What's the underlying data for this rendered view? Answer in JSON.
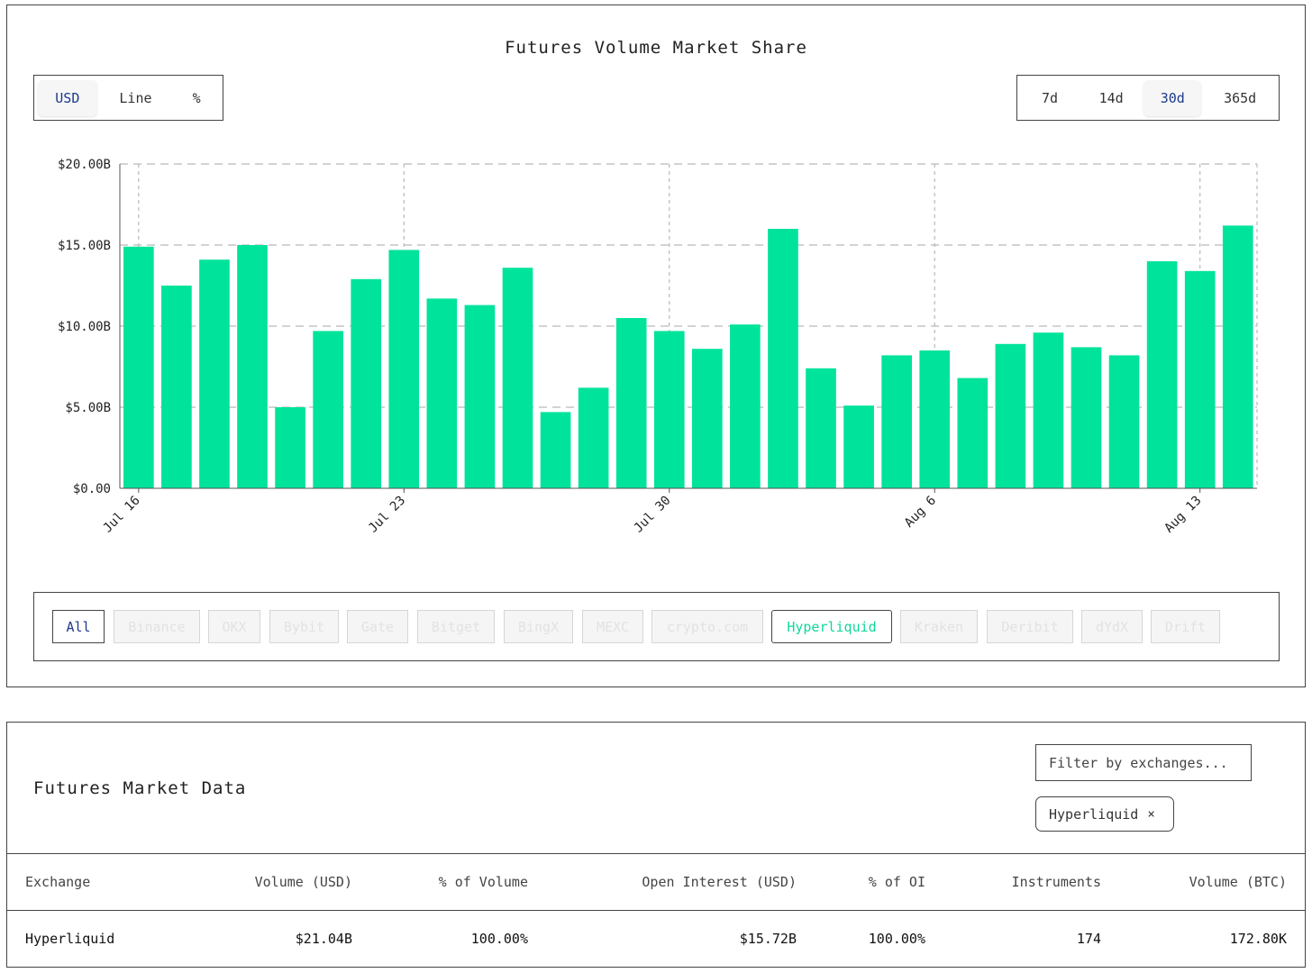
{
  "chart_data": {
    "type": "bar",
    "title": "Futures Volume Market Share",
    "y_ticks": [
      "$0.00",
      "$5.00B",
      "$10.00B",
      "$15.00B",
      "$20.00B"
    ],
    "x_tick_labels": [
      "Jul 16",
      "Jul 23",
      "Jul 30",
      "Aug 6",
      "Aug 13"
    ],
    "x_tick_indices": [
      0,
      7,
      14,
      21,
      28
    ],
    "ylim": [
      0,
      20
    ],
    "y_unit": "B USD",
    "series": [
      {
        "name": "Hyperliquid",
        "color": "#00e39b",
        "values": [
          14.9,
          12.5,
          14.1,
          15.0,
          5.0,
          9.7,
          12.9,
          14.7,
          11.7,
          11.3,
          13.6,
          4.7,
          6.2,
          10.5,
          9.7,
          8.6,
          10.1,
          16.0,
          7.4,
          5.1,
          8.2,
          8.5,
          6.8,
          8.9,
          9.6,
          8.7,
          8.2,
          14.0,
          13.4,
          16.2
        ]
      }
    ],
    "categories": [
      "Jul 16",
      "Jul 17",
      "Jul 18",
      "Jul 19",
      "Jul 20",
      "Jul 21",
      "Jul 22",
      "Jul 23",
      "Jul 24",
      "Jul 25",
      "Jul 26",
      "Jul 27",
      "Jul 28",
      "Jul 29",
      "Jul 30",
      "Jul 31",
      "Aug 1",
      "Aug 2",
      "Aug 3",
      "Aug 4",
      "Aug 5",
      "Aug 6",
      "Aug 7",
      "Aug 8",
      "Aug 9",
      "Aug 10",
      "Aug 11",
      "Aug 12",
      "Aug 13",
      "Aug 14"
    ],
    "grid": true,
    "legend": "none"
  },
  "view_toggle": {
    "options": [
      "USD",
      "Line",
      "%"
    ],
    "active": "USD"
  },
  "range_toggle": {
    "options": [
      "7d",
      "14d",
      "30d",
      "365d"
    ],
    "active": "30d"
  },
  "exchanges": {
    "all_label": "All",
    "items": [
      "Binance",
      "OKX",
      "Bybit",
      "Gate",
      "Bitget",
      "BingX",
      "MEXC",
      "crypto.com",
      "Hyperliquid",
      "Kraken",
      "Deribit",
      "dYdX",
      "Drift"
    ],
    "selected": "Hyperliquid"
  },
  "market_data": {
    "title": "Futures Market Data",
    "filter_placeholder": "Filter by exchanges...",
    "active_filter": "Hyperliquid",
    "remove_symbol": "×",
    "columns": [
      "Exchange",
      "Volume (USD)",
      "% of Volume",
      "Open Interest (USD)",
      "% of OI",
      "Instruments",
      "Volume (BTC)"
    ],
    "rows": [
      [
        "Hyperliquid",
        "$21.04B",
        "100.00%",
        "$15.72B",
        "100.00%",
        "174",
        "172.80K"
      ]
    ]
  }
}
